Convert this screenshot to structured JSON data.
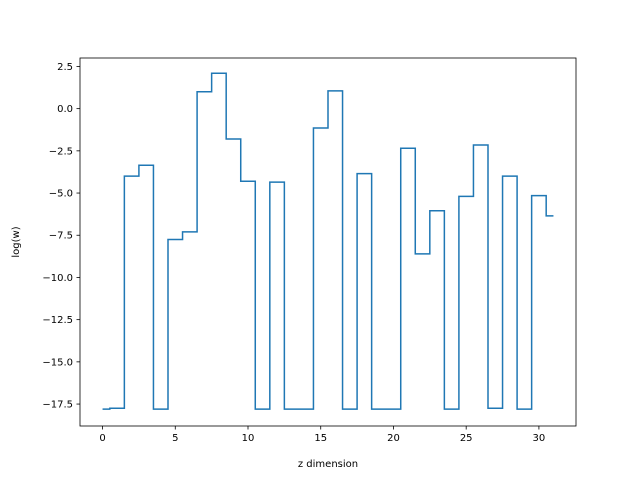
{
  "chart_data": {
    "type": "line",
    "drawstyle": "steps-mid",
    "title": "",
    "xlabel": "z dimension",
    "ylabel": "log(w)",
    "xlim": [
      -1.55,
      32.55
    ],
    "ylim": [
      -18.8,
      3.0
    ],
    "xticks": [
      0,
      5,
      10,
      15,
      20,
      25,
      30
    ],
    "xtick_labels": [
      "0",
      "5",
      "10",
      "15",
      "20",
      "25",
      "30"
    ],
    "yticks": [
      2.5,
      0.0,
      -2.5,
      -5.0,
      -7.5,
      -10.0,
      -12.5,
      -15.0,
      -17.5
    ],
    "ytick_labels": [
      "2.5",
      "0.0",
      "−2.5",
      "−5.0",
      "−7.5",
      "−10.0",
      "−12.5",
      "−15.0",
      "−17.5"
    ],
    "grid": false,
    "line_color": "#1f77b4",
    "x": [
      0,
      1,
      2,
      3,
      4,
      5,
      6,
      7,
      8,
      9,
      10,
      11,
      12,
      13,
      14,
      15,
      16,
      17,
      18,
      19,
      20,
      21,
      22,
      23,
      24,
      25,
      26,
      27,
      28,
      29,
      30,
      31
    ],
    "series": [
      {
        "values": [
          -17.8,
          -17.75,
          -4.0,
          -3.35,
          -17.8,
          -7.75,
          -7.3,
          1.0,
          2.1,
          -1.8,
          -4.3,
          -17.8,
          -4.35,
          -17.8,
          -17.8,
          -1.15,
          1.05,
          -17.8,
          -3.85,
          -17.8,
          -17.8,
          -2.35,
          -8.6,
          -6.05,
          -17.8,
          -5.2,
          -2.15,
          -17.75,
          -4.0,
          -17.8,
          -5.15,
          -6.35
        ]
      }
    ]
  }
}
